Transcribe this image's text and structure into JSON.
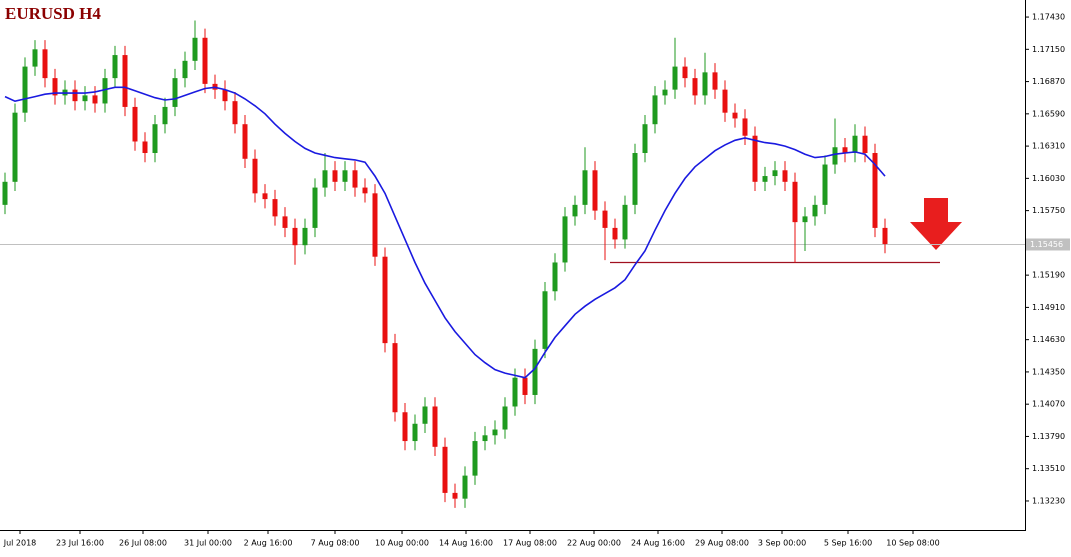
{
  "chart_data": {
    "type": "candlestick",
    "title": "EURUSD H4",
    "open": [
      1.158,
      1.16,
      1.166,
      1.17,
      1.1715,
      1.169,
      1.1675,
      1.168,
      1.167,
      1.1675,
      1.1668,
      1.169,
      1.171,
      1.1665,
      1.1635,
      1.1625,
      1.165,
      1.1665,
      1.169,
      1.1705,
      1.1725,
      1.1685,
      1.168,
      1.167,
      1.165,
      1.162,
      1.159,
      1.1585,
      1.157,
      1.156,
      1.1545,
      1.156,
      1.1595,
      1.161,
      1.16,
      1.161,
      1.1595,
      1.159,
      1.1535,
      1.146,
      1.14,
      1.1375,
      1.139,
      1.1405,
      1.137,
      1.133,
      1.1325,
      1.1345,
      1.1375,
      1.138,
      1.1385,
      1.1405,
      1.143,
      1.1415,
      1.1455,
      1.1505,
      1.153,
      1.157,
      1.158,
      1.161,
      1.1575,
      1.156,
      1.155,
      1.158,
      1.1625,
      1.165,
      1.1675,
      1.168,
      1.17,
      1.169,
      1.1675,
      1.1695,
      1.168,
      1.166,
      1.1655,
      1.164,
      1.16,
      1.1605,
      1.161,
      1.16,
      1.1565,
      1.157,
      1.158,
      1.1615,
      1.163,
      1.1625,
      1.164,
      1.1625,
      1.156
    ],
    "high": [
      1.1608,
      1.1668,
      1.1708,
      1.1723,
      1.1723,
      1.1698,
      1.1688,
      1.1688,
      1.1683,
      1.1683,
      1.1698,
      1.1718,
      1.1718,
      1.1673,
      1.1643,
      1.1658,
      1.1673,
      1.1698,
      1.1713,
      1.174,
      1.1733,
      1.1693,
      1.1688,
      1.1678,
      1.1658,
      1.1628,
      1.1598,
      1.1593,
      1.1578,
      1.1568,
      1.1568,
      1.1603,
      1.1625,
      1.1618,
      1.1618,
      1.1618,
      1.1603,
      1.1598,
      1.1543,
      1.1468,
      1.1408,
      1.1398,
      1.1413,
      1.1413,
      1.1378,
      1.1338,
      1.1353,
      1.1383,
      1.1388,
      1.1393,
      1.1413,
      1.1438,
      1.1438,
      1.1463,
      1.1513,
      1.1538,
      1.1578,
      1.1588,
      1.163,
      1.1618,
      1.1583,
      1.1568,
      1.1588,
      1.1633,
      1.1658,
      1.1683,
      1.1688,
      1.1725,
      1.1708,
      1.1698,
      1.1712,
      1.1703,
      1.1688,
      1.1668,
      1.1663,
      1.1648,
      1.1613,
      1.1618,
      1.1618,
      1.1608,
      1.1578,
      1.1588,
      1.1623,
      1.1655,
      1.1638,
      1.165,
      1.1648,
      1.1633,
      1.1568
    ],
    "low": [
      1.1572,
      1.1592,
      1.1652,
      1.1692,
      1.1682,
      1.1667,
      1.1667,
      1.1662,
      1.1662,
      1.166,
      1.166,
      1.1682,
      1.1657,
      1.1627,
      1.1617,
      1.1617,
      1.1642,
      1.1657,
      1.1682,
      1.1697,
      1.1677,
      1.1672,
      1.1662,
      1.1642,
      1.1612,
      1.1582,
      1.1577,
      1.1562,
      1.1552,
      1.1528,
      1.1537,
      1.1552,
      1.1587,
      1.1592,
      1.1592,
      1.1587,
      1.1582,
      1.1527,
      1.1452,
      1.1392,
      1.1367,
      1.1367,
      1.1382,
      1.1362,
      1.1322,
      1.1317,
      1.1317,
      1.1337,
      1.1367,
      1.1372,
      1.1377,
      1.1397,
      1.1407,
      1.1407,
      1.1447,
      1.1497,
      1.1522,
      1.1562,
      1.1572,
      1.1567,
      1.1532,
      1.1542,
      1.1542,
      1.1572,
      1.1617,
      1.1642,
      1.1667,
      1.1672,
      1.1682,
      1.1667,
      1.1667,
      1.1672,
      1.1652,
      1.1647,
      1.1632,
      1.1592,
      1.1592,
      1.1597,
      1.1592,
      1.153,
      1.154,
      1.1562,
      1.1572,
      1.1607,
      1.1617,
      1.1617,
      1.1617,
      1.1552,
      1.1538
    ],
    "close": [
      1.16,
      1.166,
      1.17,
      1.1715,
      1.169,
      1.1675,
      1.168,
      1.167,
      1.1675,
      1.1668,
      1.169,
      1.171,
      1.1665,
      1.1635,
      1.1625,
      1.165,
      1.1665,
      1.169,
      1.1705,
      1.1725,
      1.1685,
      1.168,
      1.167,
      1.165,
      1.162,
      1.159,
      1.1585,
      1.157,
      1.156,
      1.1545,
      1.156,
      1.1595,
      1.161,
      1.16,
      1.161,
      1.1595,
      1.159,
      1.1535,
      1.146,
      1.14,
      1.1375,
      1.139,
      1.1405,
      1.137,
      1.133,
      1.1325,
      1.1345,
      1.1375,
      1.138,
      1.1385,
      1.1405,
      1.143,
      1.1415,
      1.1455,
      1.1505,
      1.153,
      1.157,
      1.158,
      1.161,
      1.1575,
      1.156,
      1.155,
      1.158,
      1.1625,
      1.165,
      1.1675,
      1.168,
      1.17,
      1.169,
      1.1675,
      1.1695,
      1.168,
      1.166,
      1.1655,
      1.164,
      1.16,
      1.1605,
      1.161,
      1.16,
      1.1565,
      1.157,
      1.158,
      1.1615,
      1.163,
      1.1625,
      1.164,
      1.1625,
      1.156,
      1.1546
    ],
    "up_color": "#1f9a1f",
    "down_color": "#e81010",
    "ma": {
      "color": "#1a1ae0",
      "values": [
        1.1674,
        1.167,
        1.1672,
        1.1674,
        1.1676,
        1.1677,
        1.1677,
        1.1677,
        1.1677,
        1.1678,
        1.168,
        1.1682,
        1.1682,
        1.1679,
        1.1676,
        1.1673,
        1.1671,
        1.1672,
        1.1675,
        1.1678,
        1.1681,
        1.1682,
        1.168,
        1.1677,
        1.1672,
        1.1666,
        1.1659,
        1.165,
        1.1642,
        1.1635,
        1.1629,
        1.1625,
        1.1623,
        1.1621,
        1.162,
        1.1619,
        1.1617,
        1.1605,
        1.159,
        1.157,
        1.155,
        1.153,
        1.1512,
        1.1497,
        1.1482,
        1.147,
        1.146,
        1.145,
        1.1443,
        1.1437,
        1.1434,
        1.1432,
        1.143,
        1.1438,
        1.1452,
        1.1465,
        1.1475,
        1.1485,
        1.1492,
        1.1498,
        1.1503,
        1.1508,
        1.1515,
        1.1528,
        1.154,
        1.1558,
        1.1575,
        1.159,
        1.1603,
        1.1613,
        1.162,
        1.1627,
        1.1632,
        1.1636,
        1.1638,
        1.1636,
        1.1634,
        1.1633,
        1.1631,
        1.1628,
        1.1624,
        1.1621,
        1.1622,
        1.1624,
        1.1625,
        1.1626,
        1.1624,
        1.1615,
        1.1605
      ]
    },
    "support_level": {
      "value": 1.153,
      "color": "#a01020"
    },
    "current_price": 1.15456,
    "xlim": [
      -0.5,
      102
    ],
    "ylim": [
      1.12978,
      1.17578
    ],
    "xticks": [
      {
        "value": 1.5,
        "label": "Jul 2018"
      },
      {
        "value": 7.5,
        "label": "23 Jul 16:00"
      },
      {
        "value": 13.8,
        "label": "26 Jul 08:00"
      },
      {
        "value": 20.3,
        "label": "31 Jul 00:00"
      },
      {
        "value": 26.3,
        "label": "2 Aug 16:00"
      },
      {
        "value": 33,
        "label": "7 Aug 08:00"
      },
      {
        "value": 39.7,
        "label": "10 Aug 00:00"
      },
      {
        "value": 46.1,
        "label": "14 Aug 16:00"
      },
      {
        "value": 52.5,
        "label": "17 Aug 08:00"
      },
      {
        "value": 58.9,
        "label": "22 Aug 00:00"
      },
      {
        "value": 65.3,
        "label": "24 Aug 16:00"
      },
      {
        "value": 71.7,
        "label": "29 Aug 08:00"
      },
      {
        "value": 77.7,
        "label": "3 Sep 00:00"
      },
      {
        "value": 84.3,
        "label": "5 Sep 16:00"
      },
      {
        "value": 90.8,
        "label": "10 Sep 08:00"
      }
    ],
    "yticks": [
      {
        "value": 1.1743,
        "label": "1.17430"
      },
      {
        "value": 1.1715,
        "label": "1.17150"
      },
      {
        "value": 1.1687,
        "label": "1.16870"
      },
      {
        "value": 1.1659,
        "label": "1.16590"
      },
      {
        "value": 1.1631,
        "label": "1.16310"
      },
      {
        "value": 1.1603,
        "label": "1.16030"
      },
      {
        "value": 1.1575,
        "label": "1.15750"
      },
      {
        "value": 1.1519,
        "label": "1.15190"
      },
      {
        "value": 1.1491,
        "label": "1.14910"
      },
      {
        "value": 1.1463,
        "label": "1.14630"
      },
      {
        "value": 1.1435,
        "label": "1.14350"
      },
      {
        "value": 1.1407,
        "label": "1.14070"
      },
      {
        "value": 1.1379,
        "label": "1.13790"
      },
      {
        "value": 1.1351,
        "label": "1.13510"
      },
      {
        "value": 1.1323,
        "label": "1.13230"
      }
    ]
  }
}
